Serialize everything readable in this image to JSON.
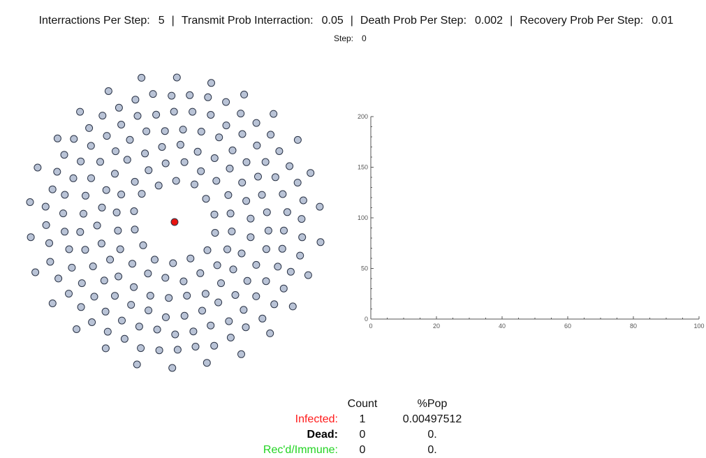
{
  "params": {
    "interactions_label": "Interractions Per Step:",
    "interactions_value": "5",
    "transmit_label": "Transmit Prob Interraction:",
    "transmit_value": "0.05",
    "death_label": "Death Prob Per Step:",
    "death_value": "0.002",
    "recovery_label": "Recovery Prob Per Step:",
    "recovery_value": "0.01",
    "separator": "|"
  },
  "step": {
    "label": "Step:",
    "value": "0"
  },
  "simulation": {
    "population": 201,
    "healthy_color": "#b9c3d6",
    "infected_color": "#e8140f",
    "outline_color": "#2a3346"
  },
  "chart_data": {
    "type": "line",
    "title": "",
    "xlabel": "",
    "ylabel": "",
    "xlim": [
      0,
      100
    ],
    "ylim": [
      0,
      200
    ],
    "x_ticks": [
      "0",
      "20",
      "40",
      "60",
      "80",
      "100"
    ],
    "y_ticks": [
      "0",
      "50",
      "100",
      "150",
      "200"
    ],
    "series": []
  },
  "stats": {
    "headers": {
      "count": "Count",
      "pct": "%Pop"
    },
    "rows": [
      {
        "label": "Infected:",
        "count": "1",
        "pct": "0.00497512",
        "color": "#ff1a1a",
        "bold": false
      },
      {
        "label": "Dead:",
        "count": "0",
        "pct": "0.",
        "color": "#000000",
        "bold": true
      },
      {
        "label": "Rec'd/Immune:",
        "count": "0",
        "pct": "0.",
        "color": "#22d422",
        "bold": false
      }
    ]
  }
}
